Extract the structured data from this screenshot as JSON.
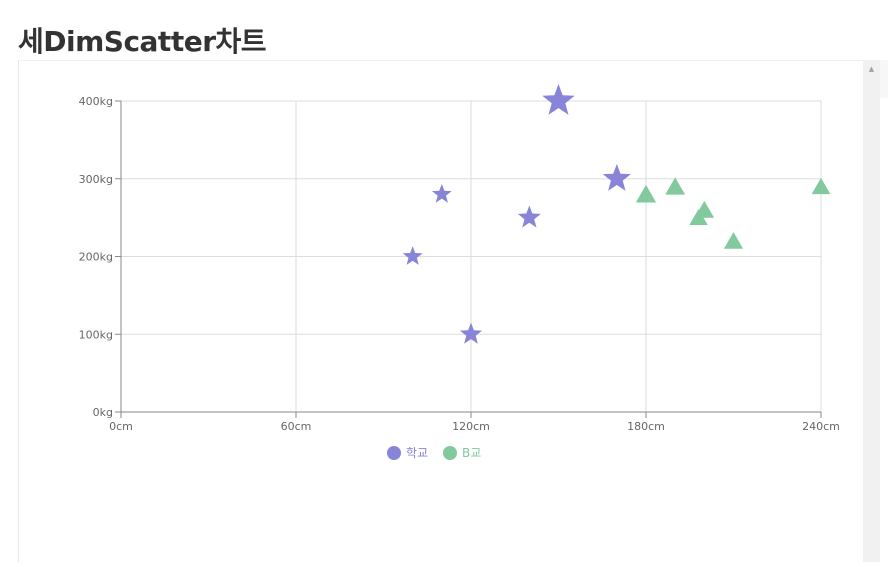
{
  "page": {
    "title": "세DimScatter차트"
  },
  "chart_data": {
    "type": "scatter",
    "title": "",
    "xlabel": "",
    "ylabel": "",
    "xlim": [
      0,
      240
    ],
    "ylim": [
      0,
      400
    ],
    "x_ticks": [
      0,
      60,
      120,
      180,
      240
    ],
    "y_ticks": [
      0,
      100,
      200,
      300,
      400
    ],
    "x_unit": "cm",
    "y_unit": "kg",
    "grid": true,
    "legend_position": "bottom-center",
    "series": [
      {
        "name": "학교",
        "symbol": "star",
        "color": "#8884d8",
        "points": [
          {
            "x": 100,
            "y": 200,
            "z": 200
          },
          {
            "x": 120,
            "y": 100,
            "z": 260
          },
          {
            "x": 170,
            "y": 300,
            "z": 400
          },
          {
            "x": 140,
            "y": 250,
            "z": 280
          },
          {
            "x": 150,
            "y": 400,
            "z": 500
          },
          {
            "x": 110,
            "y": 280,
            "z": 200
          }
        ]
      },
      {
        "name": "B교",
        "symbol": "triangle",
        "color": "#82ca9d",
        "points": [
          {
            "x": 200,
            "y": 260,
            "z": 240
          },
          {
            "x": 240,
            "y": 290,
            "z": 220
          },
          {
            "x": 190,
            "y": 290,
            "z": 250
          },
          {
            "x": 198,
            "y": 250,
            "z": 210
          },
          {
            "x": 180,
            "y": 280,
            "z": 260
          },
          {
            "x": 210,
            "y": 220,
            "z": 230
          }
        ]
      }
    ]
  }
}
